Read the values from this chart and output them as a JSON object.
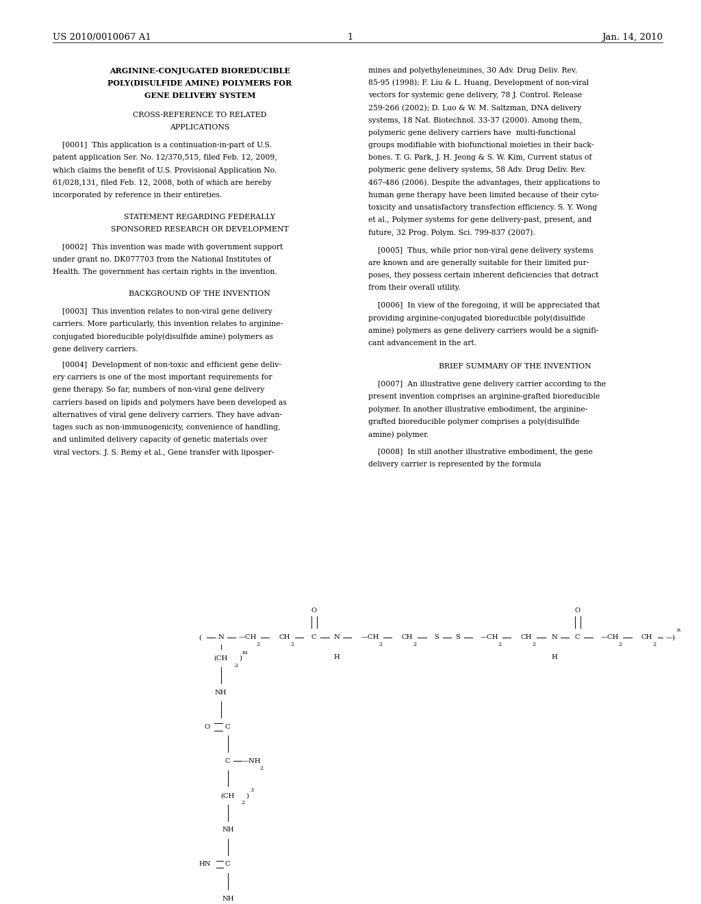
{
  "background_color": "#ffffff",
  "header_left": "US 2010/0010067 A1",
  "header_right": "Jan. 14, 2010",
  "header_center": "1",
  "body_fs": 7.8,
  "section_fs": 7.8,
  "title_fs": 8.0,
  "lm": 0.075,
  "cm": 0.495,
  "rcol": 0.525,
  "rm": 0.945
}
